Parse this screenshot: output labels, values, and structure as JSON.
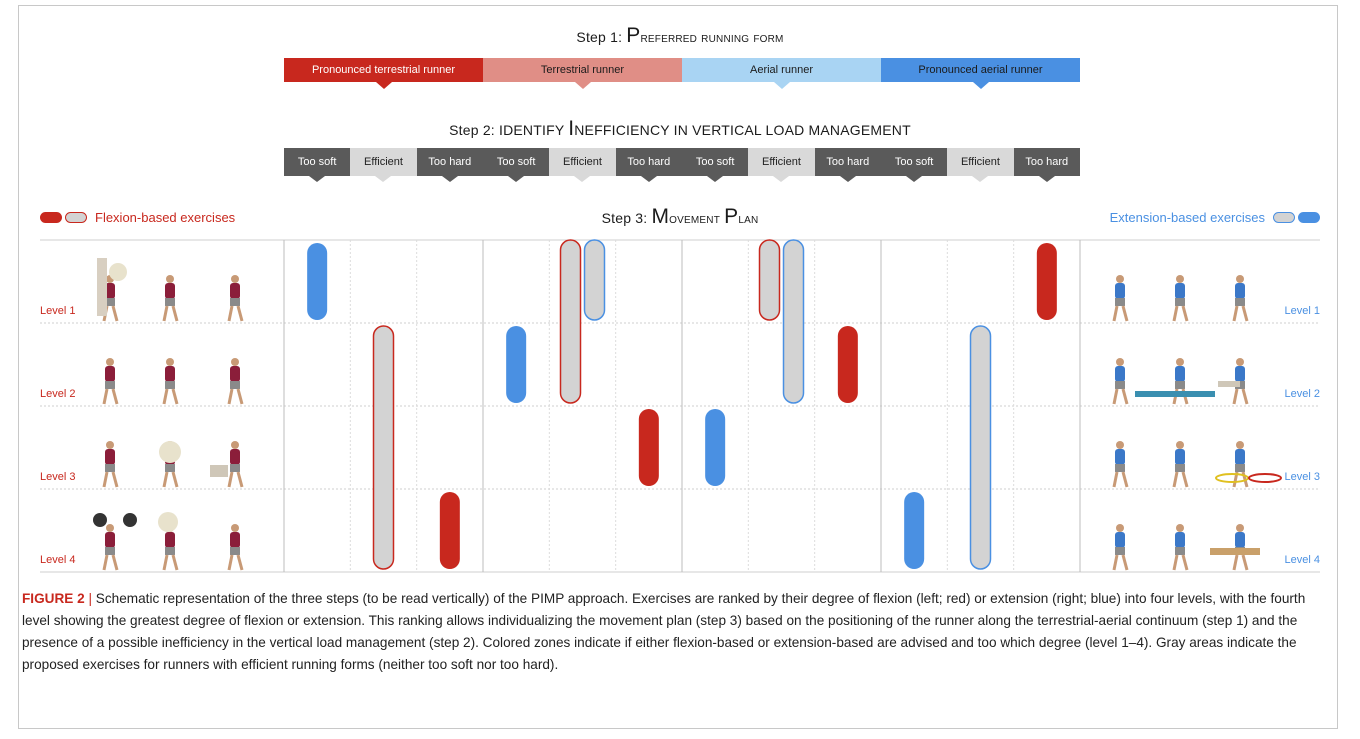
{
  "step1": {
    "prefix": "Step 1: ",
    "cap": "P",
    "rest": "referred running form"
  },
  "forms": [
    {
      "label": "Pronounced terrestrial runner",
      "color": "#c8281e",
      "text": "#ffffff"
    },
    {
      "label": "Terrestrial runner",
      "color": "#e08e86",
      "text": "#1b1b1b"
    },
    {
      "label": "Aerial runner",
      "color": "#a9d4f3",
      "text": "#1b1b1b"
    },
    {
      "label": "Pronounced aerial runner",
      "color": "#4a90e2",
      "text": "#1b1b1b"
    }
  ],
  "step2": {
    "prefix": "Step 2: IDENTIFY ",
    "cap": "I",
    "rest": "NEFFICIENCY IN VERTICAL LOAD MANAGEMENT"
  },
  "inefficiency": [
    "Too soft",
    "Efficient",
    "Too hard",
    "Too soft",
    "Efficient",
    "Too hard",
    "Too soft",
    "Efficient",
    "Too hard",
    "Too soft",
    "Efficient",
    "Too hard"
  ],
  "step3": {
    "prefix": "Step 3: ",
    "cap1": "M",
    "rest1": "ovement ",
    "cap2": "P",
    "rest2": "lan"
  },
  "legend": {
    "flexion": "Flexion-based exercises",
    "extension": "Extension-based exercises"
  },
  "levels": [
    "Level 1",
    "Level 2",
    "Level 3",
    "Level 4"
  ],
  "colors": {
    "flexion": "#c8281e",
    "extension": "#4a90e2",
    "efficient": "#d3d3d3"
  },
  "chart_data": {
    "type": "table",
    "columns": [
      "Pronounced terrestrial runner / Too soft",
      "Pronounced terrestrial runner / Efficient",
      "Pronounced terrestrial runner / Too hard",
      "Terrestrial runner / Too soft",
      "Terrestrial runner / Efficient",
      "Terrestrial runner / Too hard",
      "Aerial runner / Too soft",
      "Aerial runner / Efficient",
      "Aerial runner / Too hard",
      "Pronounced aerial runner / Too soft",
      "Pronounced aerial runner / Efficient",
      "Pronounced aerial runner / Too hard"
    ],
    "markers": [
      {
        "col": 1,
        "side": "extension",
        "kind": "solid",
        "from": 1,
        "to": 1
      },
      {
        "col": 2,
        "side": "flexion",
        "kind": "efficient",
        "from": 2,
        "to": 4
      },
      {
        "col": 3,
        "side": "flexion",
        "kind": "solid",
        "from": 4,
        "to": 4
      },
      {
        "col": 4,
        "side": "extension",
        "kind": "solid",
        "from": 2,
        "to": 2
      },
      {
        "col": 5,
        "side": "flexion",
        "kind": "efficient",
        "from": 1,
        "to": 2
      },
      {
        "col": 5,
        "side": "extension",
        "kind": "efficient",
        "from": 1,
        "to": 1
      },
      {
        "col": 6,
        "side": "flexion",
        "kind": "solid",
        "from": 3,
        "to": 3
      },
      {
        "col": 7,
        "side": "extension",
        "kind": "solid",
        "from": 3,
        "to": 3
      },
      {
        "col": 8,
        "side": "flexion",
        "kind": "efficient",
        "from": 1,
        "to": 1
      },
      {
        "col": 8,
        "side": "extension",
        "kind": "efficient",
        "from": 1,
        "to": 2
      },
      {
        "col": 9,
        "side": "flexion",
        "kind": "solid",
        "from": 2,
        "to": 2
      },
      {
        "col": 10,
        "side": "extension",
        "kind": "solid",
        "from": 4,
        "to": 4
      },
      {
        "col": 11,
        "side": "extension",
        "kind": "efficient",
        "from": 2,
        "to": 4
      },
      {
        "col": 12,
        "side": "flexion",
        "kind": "solid",
        "from": 1,
        "to": 1
      }
    ]
  },
  "caption": {
    "label": "FIGURE 2",
    "pipe": " | ",
    "text": "Schematic representation of the three steps (to be read vertically) of the PIMP approach. Exercises are ranked by their degree of flexion (left; red) or extension (right; blue) into four levels, with the fourth level showing the greatest degree of flexion or extension. This ranking allows individualizing the movement plan (step 3) based on the positioning of the runner along the terrestrial-aerial continuum (step 1) and the presence of a possible inefficiency in the vertical load management (step 2). Colored zones indicate if either flexion-based or extension-based are advised and too which degree (level 1–4). Gray areas indicate the proposed exercises for runners with efficient running forms (neither too soft nor too hard)."
  }
}
